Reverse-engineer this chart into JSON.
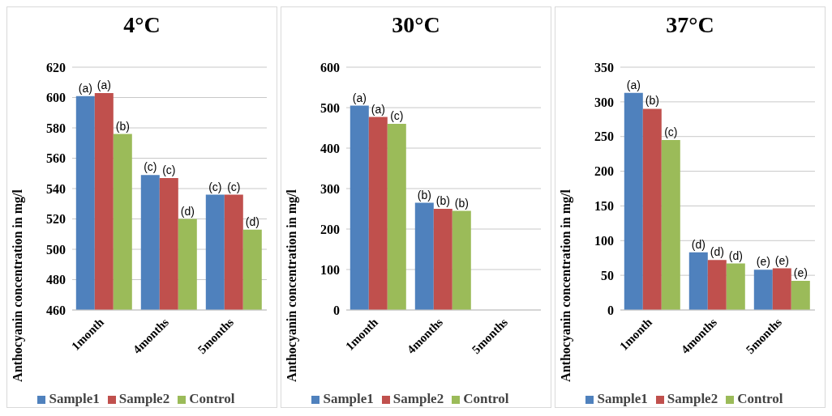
{
  "chart_data": [
    {
      "type": "bar",
      "title": "4°C",
      "ylabel": "Anthocyanin concentration in mg/l",
      "categories": [
        "1month",
        "4months",
        "5months"
      ],
      "ylim": [
        460,
        620
      ],
      "yticks": [
        460,
        480,
        500,
        520,
        540,
        560,
        580,
        600,
        620
      ],
      "grid": "y",
      "legend": "bottom",
      "series": [
        {
          "name": "Sample1",
          "color": "#4f81bd",
          "values": [
            601,
            549,
            536
          ],
          "value_labels": [
            "(a)",
            "(c)",
            "(c)"
          ]
        },
        {
          "name": "Sample2",
          "color": "#c0504d",
          "values": [
            603,
            547,
            536
          ],
          "value_labels": [
            "(a)",
            "(c)",
            "(c)"
          ]
        },
        {
          "name": "Control",
          "color": "#9bbb59",
          "values": [
            576,
            520,
            513
          ],
          "value_labels": [
            "(b)",
            "(d)",
            "(d)"
          ]
        }
      ]
    },
    {
      "type": "bar",
      "title": "30°C",
      "ylabel": "Anthocyanin concentration in mg/l",
      "categories": [
        "1month",
        "4months",
        "5months"
      ],
      "ylim": [
        0,
        600
      ],
      "yticks": [
        0,
        100,
        200,
        300,
        400,
        500,
        600
      ],
      "grid": "y",
      "legend": "bottom",
      "series": [
        {
          "name": "Sample1",
          "color": "#4f81bd",
          "values": [
            505,
            265,
            null
          ],
          "value_labels": [
            "(a)",
            "(b)",
            null
          ]
        },
        {
          "name": "Sample2",
          "color": "#c0504d",
          "values": [
            477,
            250,
            null
          ],
          "value_labels": [
            "(a)",
            "(b)",
            null
          ]
        },
        {
          "name": "Control",
          "color": "#9bbb59",
          "values": [
            460,
            245,
            null
          ],
          "value_labels": [
            "(c)",
            "(b)",
            null
          ]
        }
      ]
    },
    {
      "type": "bar",
      "title": "37°C",
      "ylabel": "Anthocyanin concentration in mg/l",
      "categories": [
        "1month",
        "4months",
        "5months"
      ],
      "ylim": [
        0,
        350
      ],
      "yticks": [
        0,
        50,
        100,
        150,
        200,
        250,
        300,
        350
      ],
      "grid": "y",
      "legend": "bottom",
      "series": [
        {
          "name": "Sample1",
          "color": "#4f81bd",
          "values": [
            313,
            83,
            58
          ],
          "value_labels": [
            "(a)",
            "(d)",
            "(e)"
          ]
        },
        {
          "name": "Sample2",
          "color": "#c0504d",
          "values": [
            290,
            72,
            60
          ],
          "value_labels": [
            "(b)",
            "(d)",
            "(e)"
          ]
        },
        {
          "name": "Control",
          "color": "#9bbb59",
          "values": [
            245,
            67,
            42
          ],
          "value_labels": [
            "(c)",
            "(d)",
            "(e)"
          ]
        }
      ]
    }
  ]
}
